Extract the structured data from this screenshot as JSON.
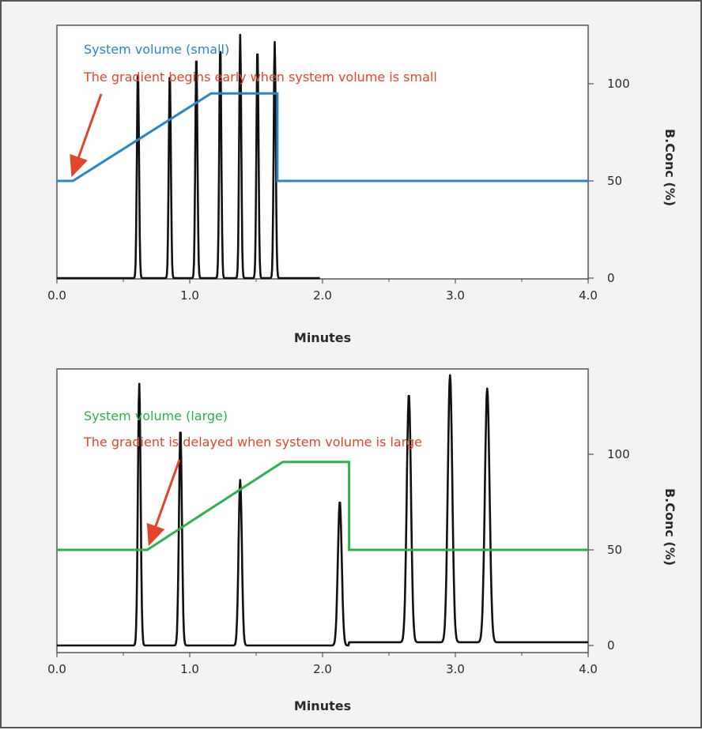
{
  "colors": {
    "small_gradient": "#2a86c8",
    "large_gradient": "#2eb24a",
    "annotation_red": "#e2452c",
    "chromatogram": "#111111",
    "frame": "#555555",
    "panel_bg": "#ffffff"
  },
  "chart_data": [
    {
      "type": "line",
      "xlabel": "Minutes",
      "ylabel": "B.Conc (%)",
      "xlim": [
        0,
        4.0
      ],
      "ylim": [
        0,
        100
      ],
      "x_ticks": [
        "0.0",
        "1.0",
        "2.0",
        "3.0",
        "4.0"
      ],
      "y_ticks": [
        "0",
        "50",
        "100"
      ],
      "annotations": {
        "series_label": "System volume (small)",
        "note": "The gradient begins early when system volume is small"
      },
      "series": [
        {
          "id": "gradient",
          "name": "System volume (small)",
          "axis": "right",
          "x": [
            0.0,
            0.12,
            1.16,
            1.66,
            1.66,
            4.0
          ],
          "y": [
            50,
            50,
            95,
            95,
            50,
            50
          ]
        }
      ],
      "chromatogram": {
        "x_end": 1.98,
        "peaks": [
          {
            "x": 0.61,
            "height": 0.86
          },
          {
            "x": 0.85,
            "height": 0.85
          },
          {
            "x": 1.05,
            "height": 0.92
          },
          {
            "x": 1.23,
            "height": 0.96
          },
          {
            "x": 1.38,
            "height": 1.0
          },
          {
            "x": 1.51,
            "height": 0.95
          },
          {
            "x": 1.64,
            "height": 0.97
          }
        ]
      },
      "arrow_target": {
        "x": 0.1,
        "y": 50
      }
    },
    {
      "type": "line",
      "xlabel": "Minutes",
      "ylabel": "B.Conc (%)",
      "xlim": [
        0,
        4.0
      ],
      "ylim": [
        0,
        100
      ],
      "x_ticks": [
        "0.0",
        "1.0",
        "2.0",
        "3.0",
        "4.0"
      ],
      "y_ticks": [
        "0",
        "50",
        "100"
      ],
      "annotations": {
        "series_label": "System volume (large)",
        "note": "The gradient is delayed when system volume is large"
      },
      "series": [
        {
          "id": "gradient",
          "name": "System volume (large)",
          "axis": "right",
          "x": [
            0.0,
            0.68,
            1.7,
            2.2,
            2.2,
            4.0
          ],
          "y": [
            50,
            50,
            96,
            96,
            50,
            50
          ]
        }
      ],
      "chromatogram": {
        "x_end": 4.0,
        "peaks": [
          {
            "x": 0.62,
            "height": 0.98
          },
          {
            "x": 0.93,
            "height": 0.81
          },
          {
            "x": 1.38,
            "height": 0.62
          },
          {
            "x": 2.13,
            "height": 0.54
          },
          {
            "x": 2.65,
            "height": 0.93
          },
          {
            "x": 2.96,
            "height": 1.0
          },
          {
            "x": 3.24,
            "height": 0.95
          }
        ]
      },
      "arrow_target": {
        "x": 0.68,
        "y": 50
      }
    }
  ]
}
